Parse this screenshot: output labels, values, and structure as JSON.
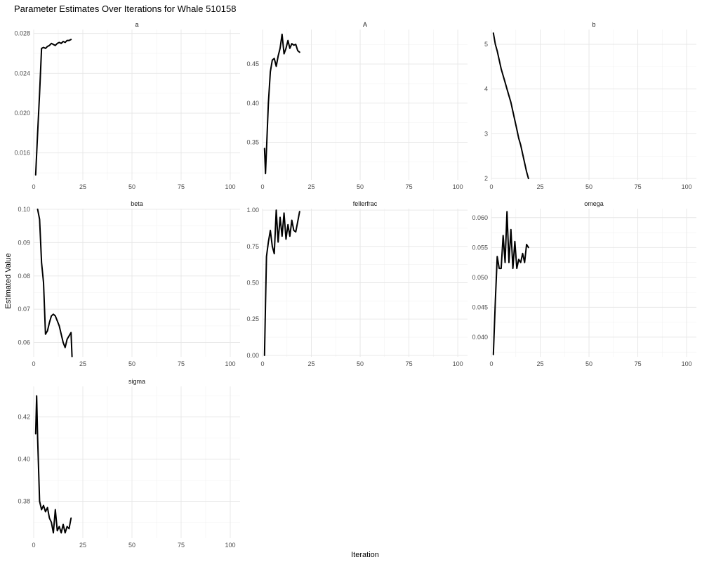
{
  "chart_data": {
    "type": "line",
    "title": "Parameter Estimates Over Iterations for Whale 510158",
    "xlabel": "Iteration",
    "ylabel": "Estimated Value",
    "grid": true,
    "line_color": "#000000",
    "panels": [
      {
        "name": "a",
        "xlim": [
          0,
          105
        ],
        "ylim": [
          0.0133,
          0.0284
        ],
        "xticks": [
          0,
          25,
          50,
          75,
          100
        ],
        "yticks": [
          0.016,
          0.02,
          0.024,
          0.028
        ],
        "ytick_labels": [
          "0.016",
          "0.020",
          "0.024",
          "0.028"
        ],
        "x": [
          1,
          2,
          3,
          4,
          5,
          6,
          7,
          8,
          9,
          10,
          11,
          12,
          13,
          14,
          15,
          16,
          17,
          18,
          19
        ],
        "y": [
          0.0138,
          0.018,
          0.022,
          0.0265,
          0.0266,
          0.0265,
          0.0267,
          0.0268,
          0.027,
          0.0269,
          0.0268,
          0.027,
          0.0271,
          0.027,
          0.0272,
          0.0271,
          0.0273,
          0.0273,
          0.0274
        ]
      },
      {
        "name": "A",
        "xlim": [
          0,
          105
        ],
        "ylim": [
          0.302,
          0.494
        ],
        "xticks": [
          0,
          25,
          50,
          75,
          100
        ],
        "yticks": [
          0.35,
          0.4,
          0.45
        ],
        "ytick_labels": [
          "0.35",
          "0.40",
          "0.45"
        ],
        "x": [
          1,
          1.5,
          2,
          3,
          4,
          5,
          6,
          7,
          8,
          9,
          10,
          11,
          12,
          13,
          14,
          15,
          16,
          17,
          18,
          19
        ],
        "y": [
          0.342,
          0.31,
          0.34,
          0.4,
          0.44,
          0.455,
          0.457,
          0.447,
          0.46,
          0.47,
          0.488,
          0.463,
          0.47,
          0.48,
          0.47,
          0.476,
          0.474,
          0.475,
          0.467,
          0.465
        ]
      },
      {
        "name": "b",
        "xlim": [
          0,
          105
        ],
        "ylim": [
          1.97,
          5.33
        ],
        "xticks": [
          0,
          25,
          50,
          75,
          100
        ],
        "yticks": [
          2,
          3,
          4,
          5
        ],
        "ytick_labels": [
          "2",
          "3",
          "4",
          "5"
        ],
        "x": [
          1,
          2,
          3,
          4,
          5,
          6,
          7,
          8,
          9,
          10,
          11,
          12,
          13,
          14,
          15,
          16,
          17,
          18,
          19
        ],
        "y": [
          5.25,
          5.0,
          4.85,
          4.65,
          4.45,
          4.3,
          4.15,
          4.0,
          3.85,
          3.7,
          3.5,
          3.3,
          3.1,
          2.9,
          2.75,
          2.55,
          2.35,
          2.15,
          2.0
        ]
      },
      {
        "name": "beta",
        "xlim": [
          0,
          105
        ],
        "ylim": [
          0.0557,
          0.1002
        ],
        "xticks": [
          0,
          25,
          50,
          75,
          100
        ],
        "yticks": [
          0.06,
          0.07,
          0.08,
          0.09,
          0.1
        ],
        "ytick_labels": [
          "0.06",
          "0.07",
          "0.08",
          "0.09",
          "0.10"
        ],
        "x": [
          2,
          3,
          4,
          5,
          6,
          7,
          8,
          9,
          10,
          11,
          12,
          13,
          14,
          15,
          16,
          17,
          18,
          19,
          19.5
        ],
        "y": [
          0.1,
          0.097,
          0.084,
          0.078,
          0.0625,
          0.0635,
          0.066,
          0.068,
          0.0685,
          0.068,
          0.0665,
          0.065,
          0.0625,
          0.06,
          0.0585,
          0.061,
          0.062,
          0.063,
          0.0558
        ]
      },
      {
        "name": "fellerfrac",
        "xlim": [
          0,
          105
        ],
        "ylim": [
          -0.01,
          1.01
        ],
        "xticks": [
          0,
          25,
          50,
          75,
          100
        ],
        "yticks": [
          0.0,
          0.25,
          0.5,
          0.75,
          1.0
        ],
        "ytick_labels": [
          "0.00",
          "0.25",
          "0.50",
          "0.75",
          "1.00"
        ],
        "x": [
          1,
          1.5,
          2,
          3,
          4,
          5,
          6,
          7,
          8,
          9,
          10,
          11,
          12,
          13,
          14,
          15,
          16,
          17,
          18,
          19
        ],
        "y": [
          0.0,
          0.35,
          0.68,
          0.78,
          0.86,
          0.75,
          0.7,
          1.0,
          0.78,
          0.95,
          0.82,
          0.98,
          0.8,
          0.9,
          0.82,
          0.93,
          0.86,
          0.85,
          0.92,
          0.99
        ]
      },
      {
        "name": "omega",
        "xlim": [
          0,
          105
        ],
        "ylim": [
          0.0367,
          0.0615
        ],
        "xticks": [
          0,
          25,
          50,
          75,
          100
        ],
        "yticks": [
          0.04,
          0.045,
          0.05,
          0.055,
          0.06
        ],
        "ytick_labels": [
          "0.040",
          "0.045",
          "0.050",
          "0.055",
          "0.060"
        ],
        "x": [
          1,
          2,
          3,
          4,
          5,
          6,
          7,
          8,
          9,
          10,
          11,
          12,
          13,
          14,
          15,
          16,
          17,
          18,
          19
        ],
        "y": [
          0.0371,
          0.046,
          0.0535,
          0.0515,
          0.0515,
          0.057,
          0.0525,
          0.061,
          0.0525,
          0.058,
          0.0515,
          0.056,
          0.0515,
          0.053,
          0.0525,
          0.054,
          0.0525,
          0.0555,
          0.055
        ]
      },
      {
        "name": "sigma",
        "xlim": [
          0,
          105
        ],
        "ylim": [
          0.3625,
          0.4345
        ],
        "xticks": [
          0,
          25,
          50,
          75,
          100
        ],
        "yticks": [
          0.38,
          0.4,
          0.42
        ],
        "ytick_labels": [
          "0.38",
          "0.40",
          "0.42"
        ],
        "x": [
          1,
          1.5,
          2,
          3,
          4,
          5,
          6,
          7,
          8,
          9,
          10,
          11,
          12,
          13,
          14,
          15,
          16,
          17,
          18,
          19
        ],
        "y": [
          0.412,
          0.43,
          0.41,
          0.38,
          0.376,
          0.378,
          0.375,
          0.377,
          0.372,
          0.37,
          0.365,
          0.376,
          0.366,
          0.368,
          0.365,
          0.369,
          0.365,
          0.368,
          0.367,
          0.372
        ]
      }
    ]
  }
}
